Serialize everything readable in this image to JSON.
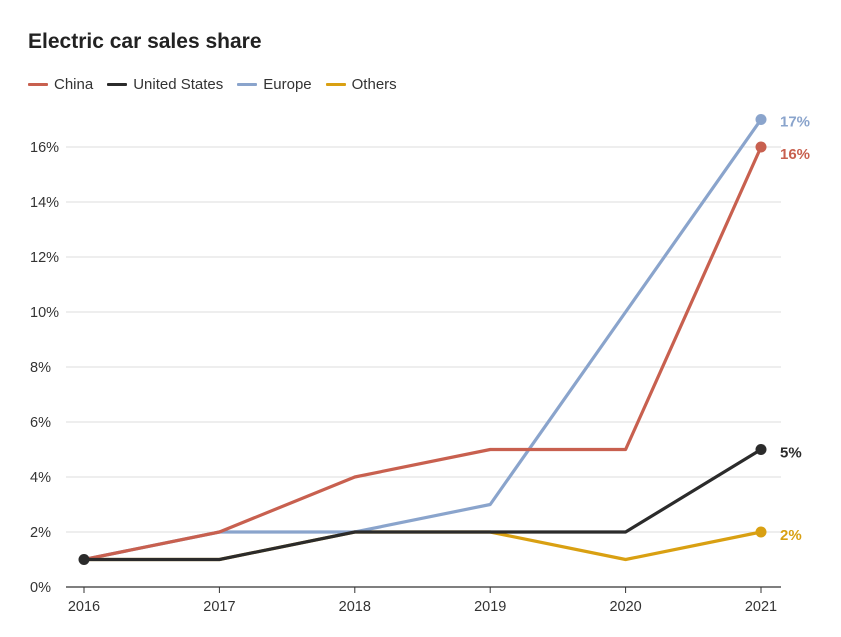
{
  "chart_data": {
    "type": "line",
    "title": "Electric car sales share",
    "xlabel": "",
    "ylabel": "",
    "x": [
      "2016",
      "2017",
      "2018",
      "2019",
      "2020",
      "2021"
    ],
    "ylim": [
      0,
      16
    ],
    "yticks": [
      0,
      2,
      4,
      6,
      8,
      10,
      12,
      14,
      16
    ],
    "ytick_labels": [
      "0%",
      "2%",
      "4%",
      "6%",
      "8%",
      "10%",
      "12%",
      "14%",
      "16%"
    ],
    "grid": true,
    "legend_position": "top-left",
    "series": [
      {
        "name": "China",
        "color": "#c8604f",
        "values": [
          1,
          2,
          4,
          5,
          5,
          16
        ],
        "end_label": "16%"
      },
      {
        "name": "United States",
        "color": "#2b2b2b",
        "values": [
          1,
          1,
          2,
          2,
          2,
          5
        ],
        "end_label": "5%"
      },
      {
        "name": "Europe",
        "color": "#8aa4cc",
        "values": [
          1,
          2,
          2,
          3,
          10,
          17
        ],
        "end_label": "17%"
      },
      {
        "name": "Others",
        "color": "#d9a012",
        "values": [
          1,
          1,
          2,
          2,
          1,
          2
        ],
        "end_label": "2%"
      }
    ]
  }
}
